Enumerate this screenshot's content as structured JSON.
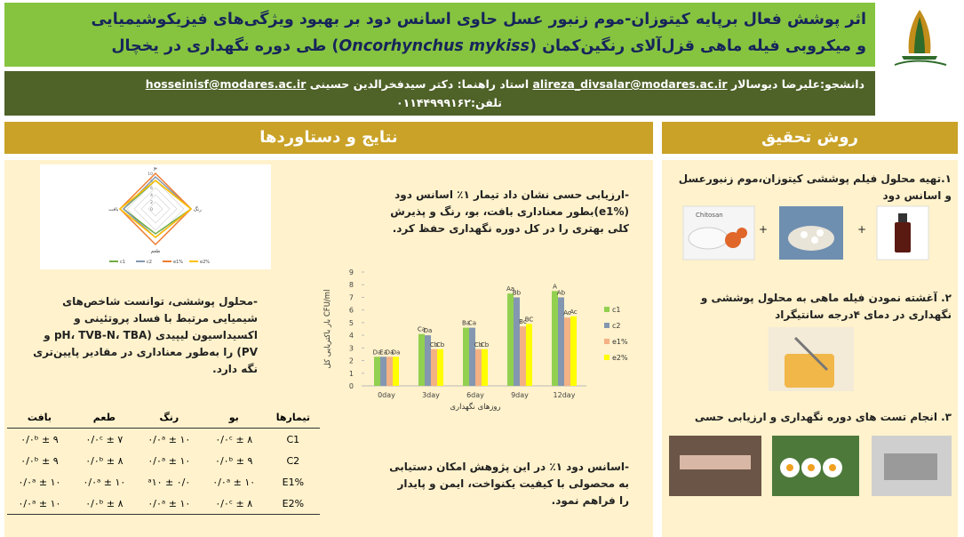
{
  "header": {
    "title_line1": "اثر پوشش فعال برپایه کیتوزان-موم زنبور عسل حاوی اسانس دود بر بهبود ویژگی‌های فیزیکوشیمیایی",
    "title_line2_start": "و میکروبی فیله ماهی قزل‌آلای رنگین‌کمان (",
    "title_line2_italic": "Oncorhynchus mykiss",
    "title_line2_end": ") طی دوره نگهداری در یخچال"
  },
  "info": {
    "student": "دانشجو:علیرضا دیوسالار",
    "student_email": "alireza_divsalar@modares.ac.ir",
    "supervisor": "استاد راهنما: دکتر سیدفخرالدین حسینی",
    "supervisor_email": "hosseinisf@modares.ac.ir",
    "phone": "تلفن:۰۱۱۴۴۹۹۹۱۶۲"
  },
  "methods": {
    "heading": "روش تحقیق",
    "steps": [
      "۱.تهیه محلول فیلم پوششی کیتوزان،موم زنبورعسل و اسانس دود",
      "۲. آغشته نمودن فیله ماهی به محلول پوششی و نگهداری در دمای ۴درجه سانتیگراد",
      "۳. انجام تست های دوره نگهداری و ارزیابی حسی"
    ],
    "plus_sign": "+",
    "image_label": "Chitosan"
  },
  "results": {
    "heading": "نتایج و دستاوردها",
    "paragraphs": [
      "-ارزیابی حسی نشان داد تیمار ۱٪ اسانس دود (e1%)بطور معناداری بافت، بو، رنگ و پذیرش کلی بهتری را در کل دوره نگهداری حفظ کرد.",
      "-محلول پوششی، توانست شاخص‌های شیمیایی مرتبط با فساد پروتئینی و اکسیداسیون لیپیدی (pH، TVB-N، TBA و PV) را به‌طور معناداری در مقادیر پایین‌تری نگه دارد.",
      "-اسانس دود ۱٪ در این پژوهش امکان دستیابی به محصولی با کیفیت یکنواخت، ایمن و پایدار را فراهم نمود."
    ]
  },
  "table": {
    "header": [
      "تیمارها",
      "بو",
      "رنگ",
      "طعم",
      "بافت"
    ],
    "rows": [
      [
        "C1",
        "۸ ± ۰/۰ᶜ",
        "۱۰ ± ۰/۰ᵃ",
        "۷ ± ۰/۰ᶜ",
        "۹ ± ۰/۰ᵇ"
      ],
      [
        "C2",
        "۹ ± ۰/۰ᵇ",
        "۱۰ ± ۰/۰ᵃ",
        "۸ ± ۰/۰ᵇ",
        "۹ ± ۰/۰ᵇ"
      ],
      [
        "E1%",
        "۱۰ ± ۰/۰ᵃ",
        "ᵃ۱۰ ± ۰/۰",
        "۱۰ ± ۰/۰ᵃ",
        "۱۰ ± ۰/۰ᵃ"
      ],
      [
        "E2%",
        "۸ ± ۰/۰ᶜ",
        "۱۰ ± ۰/۰ᵃ",
        "۸ ± ۰/۰ᵇ",
        "۱۰ ± ۰/۰ᵃ"
      ]
    ]
  },
  "chart_data": [
    {
      "type": "radar",
      "axes": [
        "بو",
        "رنگ",
        "طعم",
        "بافت"
      ],
      "rlim": [
        0,
        10
      ],
      "rticks": [
        0,
        2,
        4,
        6,
        8,
        10
      ],
      "series": [
        {
          "name": "c1",
          "color": "#70ad47",
          "values": [
            8,
            10,
            7,
            9
          ]
        },
        {
          "name": "c2",
          "color": "#8497b0",
          "values": [
            9,
            10,
            8,
            9
          ]
        },
        {
          "name": "e1%",
          "color": "#ed7d31",
          "values": [
            10,
            10,
            10,
            10
          ]
        },
        {
          "name": "e2%",
          "color": "#ffc000",
          "values": [
            8,
            10,
            8,
            10
          ]
        }
      ]
    },
    {
      "type": "bar",
      "x_label": "روزهای نگهداری",
      "y_label": "بار باکتریایی کل CFU/ml",
      "categories": [
        "0day",
        "3day",
        "6day",
        "9day",
        "12day"
      ],
      "ylim": [
        0,
        9
      ],
      "yticks": [
        0,
        1,
        2,
        3,
        4,
        5,
        6,
        7,
        8,
        9
      ],
      "series": [
        {
          "name": "c1",
          "color": "#92d050",
          "values": [
            2.3,
            4.1,
            4.6,
            7.3,
            7.5
          ],
          "value_labels": [
            "Da",
            "Ca",
            "Ba",
            "Aa",
            "A"
          ]
        },
        {
          "name": "c2",
          "color": "#8497b0",
          "values": [
            2.3,
            4.0,
            4.6,
            7.0,
            7.0
          ],
          "value_labels": [
            "Ea",
            "Da",
            "Ca",
            "Bb",
            "Ab"
          ]
        },
        {
          "name": "e1%",
          "color": "#f4b183",
          "values": [
            2.3,
            2.9,
            2.9,
            4.7,
            5.4
          ],
          "value_labels": [
            "Da",
            "Cb",
            "Cb",
            "Bc",
            "Ac"
          ]
        },
        {
          "name": "e2%",
          "color": "#ffff00",
          "values": [
            2.3,
            2.9,
            2.9,
            4.9,
            5.5
          ],
          "value_labels": [
            "Da",
            "Cb",
            "Cb",
            "BC",
            "Ac"
          ]
        }
      ]
    }
  ]
}
